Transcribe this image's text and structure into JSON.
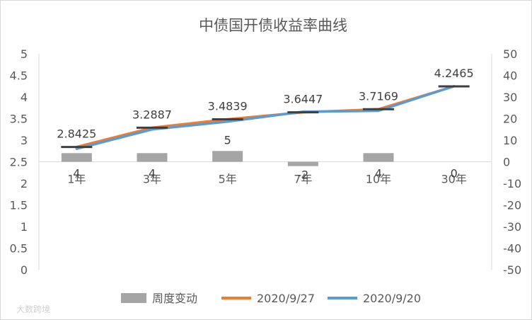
{
  "chart_data": {
    "type": "bar+line",
    "title": "中债国开债收益率曲线",
    "categories": [
      "1年",
      "3年",
      "5年",
      "7年",
      "10年",
      "30年"
    ],
    "y_left": {
      "min": 0,
      "max": 5,
      "step": 0.5,
      "ticks": [
        "0",
        "0.5",
        "1",
        "1.5",
        "2",
        "2.5",
        "3",
        "3.5",
        "4",
        "4.5",
        "5"
      ]
    },
    "y_right": {
      "min": -50,
      "max": 50,
      "step": 10,
      "ticks": [
        "-50",
        "-40",
        "-30",
        "-20",
        "-10",
        "0",
        "10",
        "20",
        "30",
        "40",
        "50"
      ]
    },
    "bars": {
      "name": "周度变动",
      "axis": "right",
      "color": "#a5a5a5",
      "values": [
        4,
        4,
        5,
        -2,
        4,
        0
      ],
      "labels": [
        "4",
        "4",
        "5",
        "-2",
        "4",
        "0"
      ]
    },
    "series": [
      {
        "name": "2020/9/27",
        "axis": "left",
        "color": "#ed7d31",
        "values": [
          2.8425,
          3.2887,
          3.4839,
          3.6447,
          3.7169,
          4.2465
        ],
        "labels": [
          "2.8425",
          "3.2887",
          "3.4839",
          "3.6447",
          "3.7169",
          "4.2465"
        ]
      },
      {
        "name": "2020/9/20",
        "axis": "left",
        "color": "#5b9bd5",
        "values": [
          2.8,
          3.25,
          3.43,
          3.66,
          3.68,
          4.25
        ]
      }
    ],
    "grid": false,
    "legend": "bottom"
  },
  "watermark": "大数跨境"
}
